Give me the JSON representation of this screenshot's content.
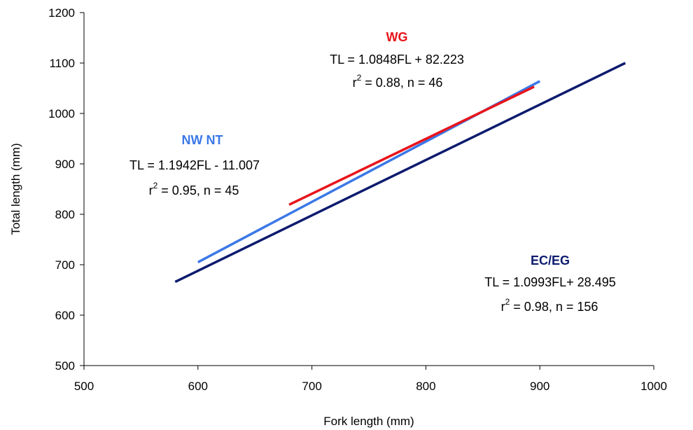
{
  "chart_data": {
    "type": "line",
    "xlabel": "Fork length (mm)",
    "ylabel": "Total length (mm)",
    "xlim": [
      500,
      1000
    ],
    "ylim": [
      500,
      1200
    ],
    "xticks": [
      500,
      600,
      700,
      800,
      900,
      1000
    ],
    "yticks": [
      500,
      600,
      700,
      800,
      900,
      1000,
      1100,
      1200
    ],
    "grid": false,
    "legend": "none",
    "series": [
      {
        "name": "NW NT",
        "color": "#3B78E7",
        "x": [
          600,
          900
        ],
        "y": [
          705,
          1064
        ],
        "equation": "TL = 1.1942FL - 11.007",
        "r2_prefix": "r",
        "r2_rest": " = 0.95, n = 45"
      },
      {
        "name": "WG",
        "color": "#E8141B",
        "x": [
          680,
          895
        ],
        "y": [
          819,
          1053
        ],
        "equation": "TL = 1.0848FL + 82.223",
        "r2_prefix": "r",
        "r2_rest": " = 0.88, n = 46"
      },
      {
        "name": "EC/EG",
        "color": "#0D1B6E",
        "x": [
          580,
          975
        ],
        "y": [
          666,
          1100
        ],
        "equation": "TL = 1.0993FL+ 28.495",
        "r2_prefix": "r",
        "r2_rest": " = 0.98, n = 156"
      }
    ],
    "superscript": "2"
  }
}
